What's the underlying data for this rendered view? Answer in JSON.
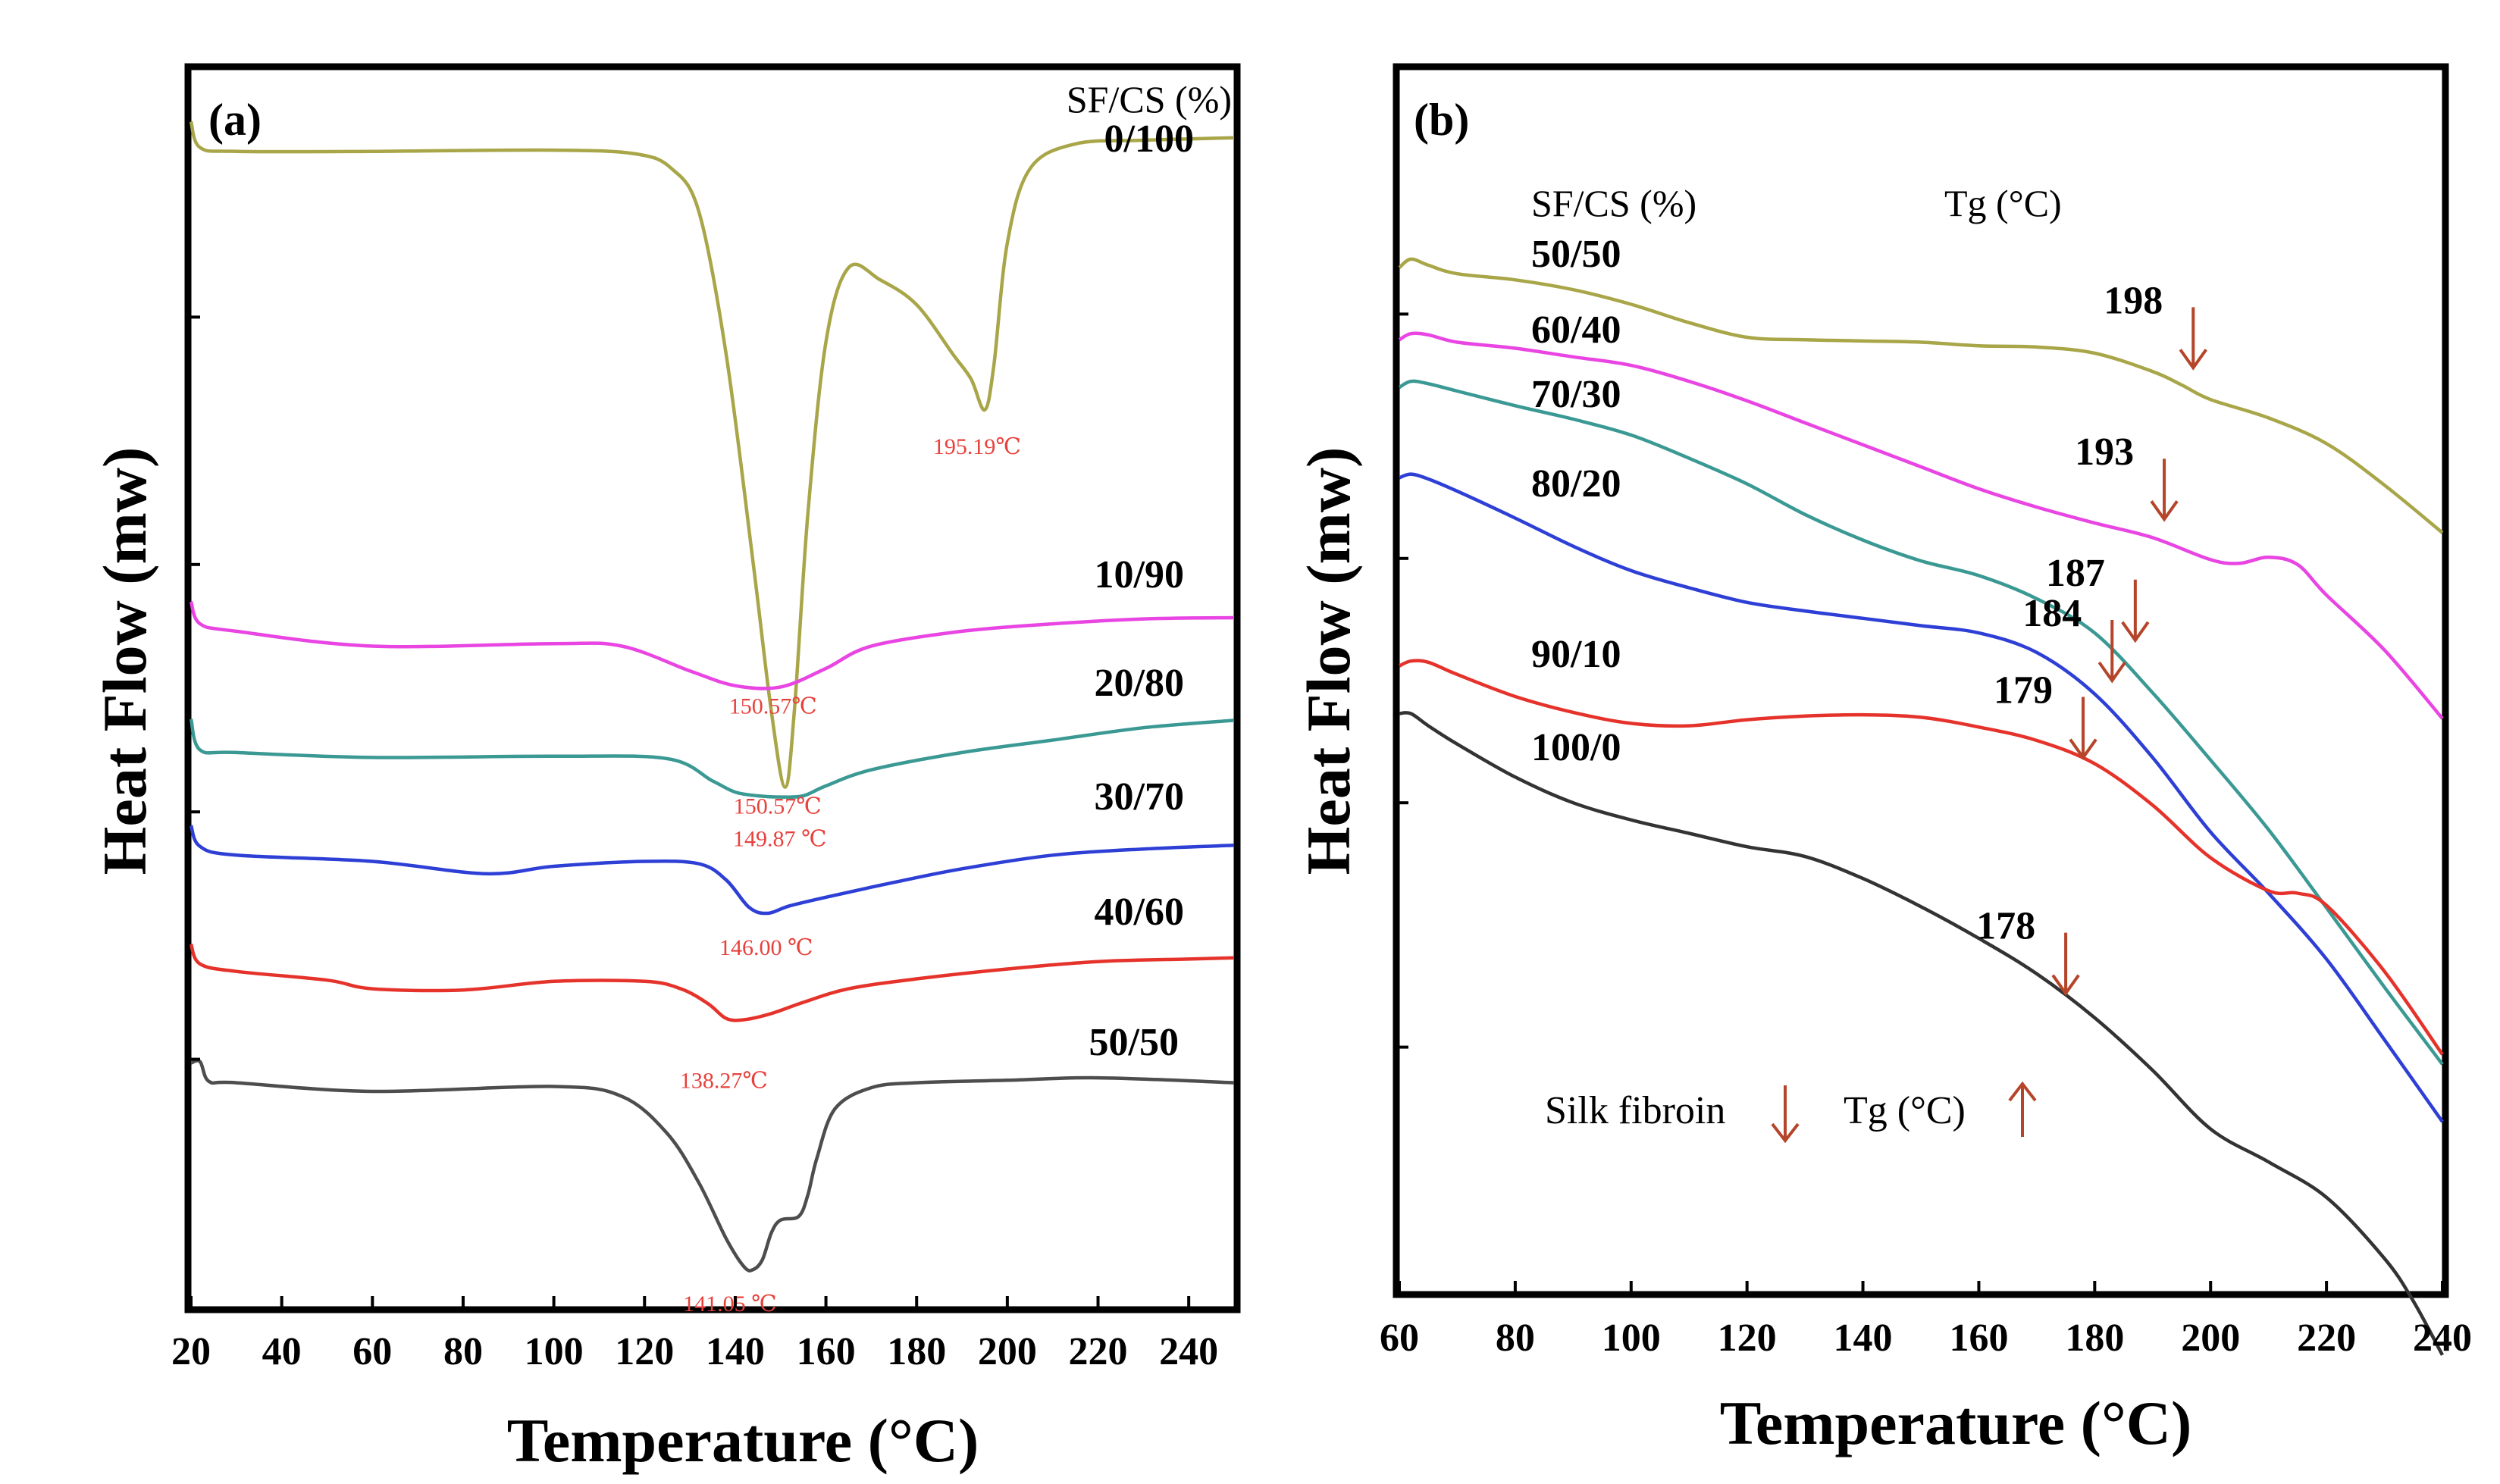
{
  "chart_data": [
    {
      "type": "line",
      "panel": "(a)",
      "xlabel": "Temperature (°C)",
      "ylabel": "Heat Flow (mw)",
      "xlim": [
        20,
        250
      ],
      "ylim": [
        0,
        100
      ],
      "xticks": [
        20,
        40,
        60,
        80,
        100,
        120,
        140,
        160,
        180,
        200,
        220,
        240
      ],
      "legend_header": "SF/CS (%)",
      "series": [
        {
          "name": "0/100",
          "color": "#a8a648",
          "x": [
            20,
            22,
            30,
            60,
            100,
            118,
            126,
            132,
            138,
            144,
            148,
            151,
            153,
            156,
            160,
            165,
            172,
            180,
            188,
            192,
            195,
            197,
            200,
            205,
            215,
            230,
            250
          ],
          "y": [
            95.8,
            93.7,
            93.4,
            93.4,
            93.5,
            93.2,
            92.0,
            88.5,
            77,
            60,
            48,
            42,
            48,
            64,
            78,
            84,
            83,
            81,
            77,
            75,
            72.5,
            76,
            86,
            92,
            94,
            94.3,
            94.5
          ]
        },
        {
          "name": "10/90",
          "color": "#e845e3",
          "x": [
            20,
            22,
            30,
            60,
            100,
            115,
            130,
            140,
            150,
            160,
            170,
            190,
            210,
            230,
            250
          ],
          "y": [
            57,
            55.2,
            54.6,
            53.4,
            53.6,
            53.4,
            51.4,
            50.2,
            50.1,
            51.6,
            53.4,
            54.6,
            55.2,
            55.6,
            55.7
          ]
        },
        {
          "name": "20/80",
          "color": "#3b9994",
          "x": [
            20,
            22,
            30,
            60,
            100,
            125,
            135,
            140,
            145,
            150,
            155,
            160,
            170,
            190,
            210,
            230,
            250
          ],
          "y": [
            47.5,
            45,
            44.8,
            44.4,
            44.5,
            44.3,
            42.5,
            41.6,
            41.3,
            41.2,
            41.3,
            42.1,
            43.4,
            44.8,
            45.8,
            46.8,
            47.4
          ]
        },
        {
          "name": "30/70",
          "color": "#2e3fd6",
          "x": [
            20,
            22,
            30,
            60,
            85,
            100,
            120,
            132,
            138,
            143,
            147,
            152,
            160,
            175,
            190,
            210,
            230,
            250
          ],
          "y": [
            38.9,
            37.2,
            36.5,
            36,
            35,
            35.6,
            36,
            35.8,
            34.5,
            32.3,
            31.8,
            32.4,
            33.1,
            34.3,
            35.4,
            36.5,
            37,
            37.3
          ]
        },
        {
          "name": "40/60",
          "color": "#e5332b",
          "x": [
            20,
            22,
            30,
            50,
            60,
            80,
            100,
            120,
            128,
            134,
            138,
            142,
            148,
            155,
            165,
            180,
            200,
            220,
            240,
            250
          ],
          "y": [
            29.3,
            27.7,
            27.1,
            26.4,
            25.7,
            25.6,
            26.3,
            26.3,
            25.7,
            24.5,
            23.3,
            23.2,
            23.7,
            24.6,
            25.7,
            26.5,
            27.3,
            27.9,
            28.1,
            28.2
          ]
        },
        {
          "name": "50/50",
          "color": "#4d4d4d",
          "x": [
            20,
            22,
            24,
            30,
            60,
            100,
            115,
            125,
            132,
            138,
            142,
            144,
            146,
            148,
            150,
            154,
            156,
            158,
            162,
            170,
            180,
            200,
            220,
            250
          ],
          "y": [
            19.7,
            19.8,
            18.2,
            18.1,
            17.4,
            17.8,
            17,
            14,
            10,
            5.5,
            3.2,
            3.0,
            3.8,
            6,
            7,
            7.3,
            9,
            12,
            16,
            17.7,
            18.1,
            18.3,
            18.5,
            18.1
          ]
        }
      ],
      "annotations": [
        {
          "text": "195.19℃",
          "x": 195,
          "y": 72.5
        },
        {
          "text": "150.57℃",
          "x": 151,
          "y": 42
        },
        {
          "text": "150.57℃",
          "x": 150,
          "y": 50.1
        },
        {
          "text": "149.87 ℃",
          "x": 149,
          "y": 41.2
        },
        {
          "text": "146.00 ℃",
          "x": 146,
          "y": 31.8
        },
        {
          "text": "138.27℃",
          "x": 140,
          "y": 23.2
        },
        {
          "text": "141.05 ℃",
          "x": 143,
          "y": 3.0
        }
      ]
    },
    {
      "type": "line",
      "panel": "(b)",
      "xlabel": "Temperature (°C)",
      "ylabel": "Heat Flow (mw)",
      "xlim": [
        60,
        240
      ],
      "ylim": [
        0,
        100
      ],
      "xticks": [
        60,
        80,
        100,
        120,
        140,
        160,
        180,
        200,
        220,
        240
      ],
      "legend_header": "SF/CS (%)",
      "tg_header": "Tg (°C)",
      "series": [
        {
          "name": "50/50",
          "tg": "198",
          "color": "#a8a648",
          "x": [
            60,
            62,
            65,
            70,
            80,
            90,
            100,
            110,
            120,
            130,
            140,
            150,
            160,
            170,
            180,
            190,
            195,
            200,
            210,
            220,
            230,
            240
          ],
          "y": [
            83.8,
            84.5,
            84,
            83.3,
            82.8,
            82,
            80.8,
            79.3,
            78.1,
            77.9,
            77.8,
            77.7,
            77.4,
            77.3,
            76.8,
            75.3,
            74.2,
            73,
            71.5,
            69.4,
            66,
            62.1
          ]
        },
        {
          "name": "60/40",
          "tg": "193",
          "color": "#e845e3",
          "x": [
            60,
            62,
            65,
            70,
            80,
            90,
            100,
            110,
            120,
            130,
            140,
            150,
            160,
            170,
            180,
            190,
            200,
            205,
            210,
            215,
            220,
            230,
            240
          ],
          "y": [
            77.9,
            78.4,
            78.3,
            77.7,
            77.2,
            76.5,
            75.8,
            74.5,
            72.9,
            71.1,
            69.3,
            67.5,
            65.7,
            64.2,
            62.9,
            61.7,
            59.9,
            59.6,
            60.1,
            59.5,
            57,
            52.5,
            46.9
          ]
        },
        {
          "name": "70/30",
          "tg": "187",
          "color": "#3b9994",
          "x": [
            60,
            62,
            65,
            70,
            80,
            90,
            100,
            110,
            120,
            130,
            140,
            150,
            160,
            170,
            180,
            190,
            200,
            210,
            220,
            230,
            240
          ],
          "y": [
            74,
            74.5,
            74.3,
            73.7,
            72.5,
            71.4,
            70.1,
            68.2,
            66.1,
            63.6,
            61.5,
            59.8,
            58.6,
            56.7,
            53.9,
            49,
            43.5,
            37.8,
            31.4,
            24.9,
            18.6
          ]
        },
        {
          "name": "80/20",
          "tg": "184",
          "color": "#2e3fd6",
          "x": [
            60,
            62,
            65,
            70,
            80,
            90,
            100,
            110,
            120,
            130,
            140,
            150,
            160,
            170,
            180,
            190,
            200,
            210,
            220,
            230,
            240
          ],
          "y": [
            66.6,
            66.9,
            66.5,
            65.5,
            63.3,
            61,
            59,
            57.6,
            56.4,
            55.7,
            55.1,
            54.5,
            53.9,
            52.3,
            48.9,
            43.7,
            37.6,
            32.6,
            27.2,
            20.6,
            13.9
          ]
        },
        {
          "name": "90/10",
          "tg": "179",
          "color": "#e5332b",
          "x": [
            60,
            62,
            65,
            70,
            80,
            90,
            100,
            110,
            120,
            130,
            140,
            150,
            160,
            170,
            180,
            190,
            200,
            210,
            215,
            220,
            230,
            240
          ],
          "y": [
            51.2,
            51.6,
            51.5,
            50.5,
            48.7,
            47.4,
            46.5,
            46.3,
            46.8,
            47.1,
            47.2,
            47,
            46.2,
            45.1,
            43.2,
            39.8,
            35.5,
            32.8,
            32.6,
            31.6,
            26.2,
            19.4
          ]
        },
        {
          "name": "100/0",
          "tg": "178",
          "color": "#333333",
          "x": [
            60,
            62,
            65,
            70,
            80,
            90,
            100,
            110,
            120,
            130,
            140,
            150,
            160,
            170,
            180,
            190,
            200,
            210,
            220,
            230,
            235,
            240
          ],
          "y": [
            47.3,
            47.3,
            46.3,
            44.8,
            42.1,
            40,
            38.6,
            37.5,
            36.4,
            35.6,
            33.8,
            31.5,
            28.9,
            26,
            22.4,
            18.1,
            13.3,
            10.6,
            7.7,
            2.7,
            -0.8,
            -5.2
          ]
        }
      ],
      "annotations": [
        {
          "text": "198",
          "x": 197,
          "y": 75.6
        },
        {
          "text": "193",
          "x": 192,
          "y": 63.2
        },
        {
          "text": "187",
          "x": 187,
          "y": 53.3
        },
        {
          "text": "184",
          "x": 183,
          "y": 50.0
        },
        {
          "text": "179",
          "x": 178,
          "y": 43.7
        },
        {
          "text": "178",
          "x": 175,
          "y": 24.4
        }
      ],
      "note": {
        "text1": "Silk fibroin",
        "text2": "Tg (°C)"
      }
    }
  ]
}
